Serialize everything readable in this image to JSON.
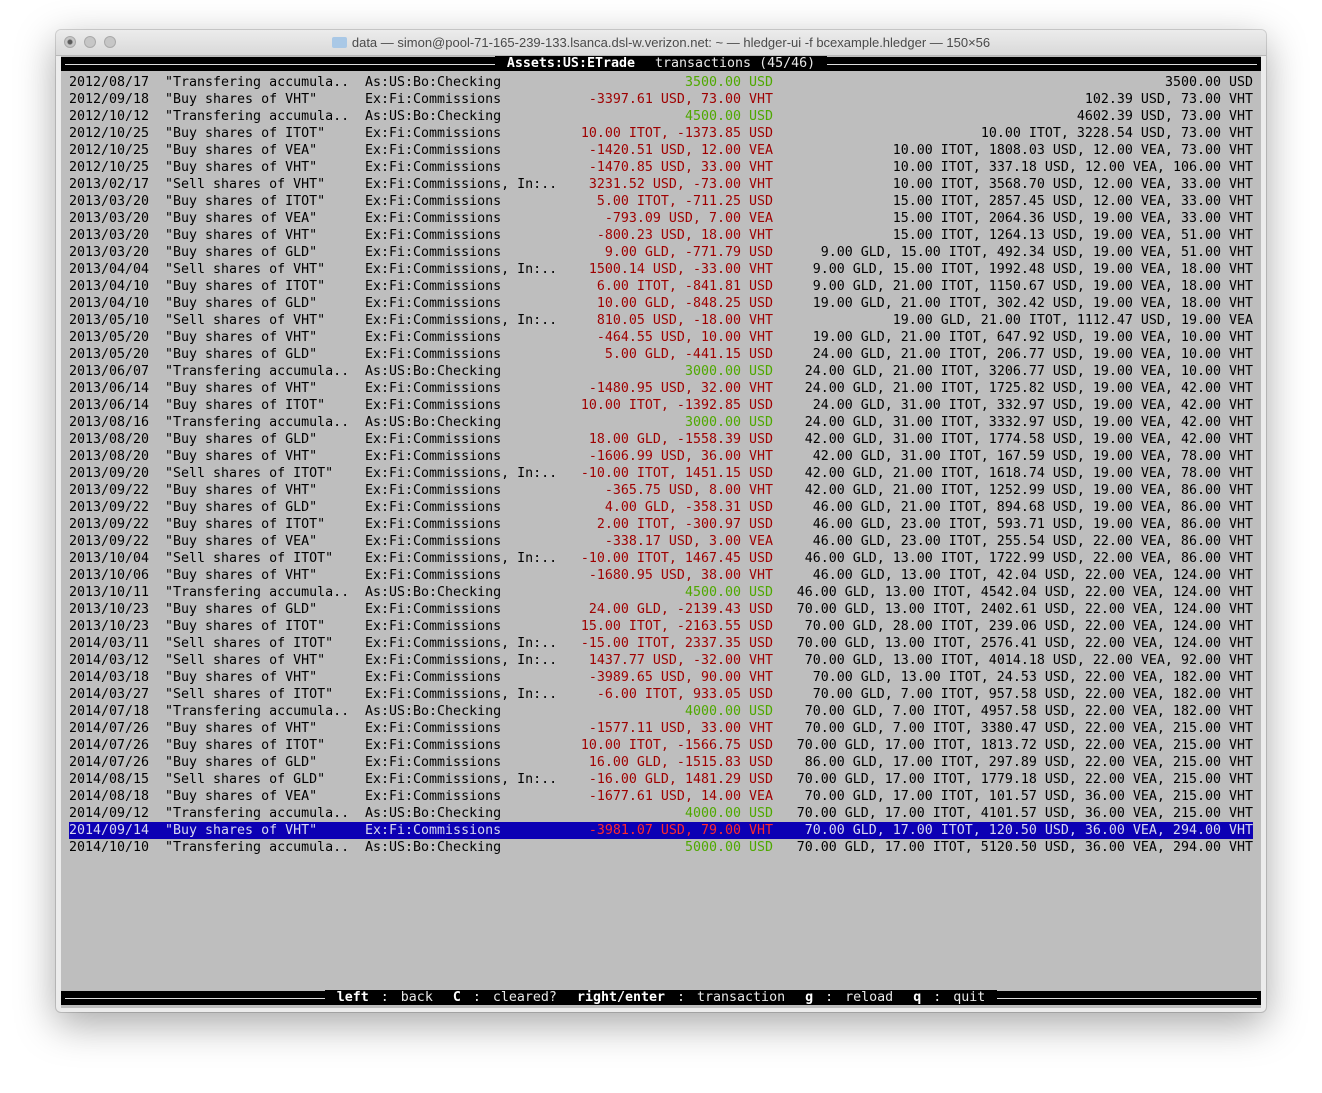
{
  "window": {
    "title": "data — simon@pool-71-165-239-133.lsanca.dsl-w.verizon.net: ~ — hledger-ui -f bcexample.hledger — 150×56"
  },
  "header": {
    "account": "Assets:US:ETrade",
    "label": "transactions (45/46)"
  },
  "footer": {
    "keys": [
      {
        "key": "left",
        "action": "back"
      },
      {
        "key": "C",
        "action": "cleared?"
      },
      {
        "key": "right/enter",
        "action": "transaction"
      },
      {
        "key": "g",
        "action": "reload"
      },
      {
        "key": "q",
        "action": "quit"
      }
    ]
  },
  "colors": {
    "background": "#bebebe",
    "selection": "#0c00b4",
    "negative": "#9e0000",
    "positive": "#4fa800"
  },
  "selected_index": 44,
  "rows": [
    {
      "date": "2012/08/17",
      "desc": "\"Transfering accumula..",
      "account": "As:US:Bo:Checking",
      "amount": "3500.00 USD",
      "balance": "3500.00 USD",
      "color": "green"
    },
    {
      "date": "2012/09/18",
      "desc": "\"Buy shares of VHT\"",
      "account": "Ex:Fi:Commissions",
      "amount": "-3397.61 USD, 73.00 VHT",
      "balance": "102.39 USD, 73.00 VHT",
      "color": "red"
    },
    {
      "date": "2012/10/12",
      "desc": "\"Transfering accumula..",
      "account": "As:US:Bo:Checking",
      "amount": "4500.00 USD",
      "balance": "4602.39 USD, 73.00 VHT",
      "color": "green"
    },
    {
      "date": "2012/10/25",
      "desc": "\"Buy shares of ITOT\"",
      "account": "Ex:Fi:Commissions",
      "amount": "10.00 ITOT, -1373.85 USD",
      "balance": "10.00 ITOT, 3228.54 USD, 73.00 VHT",
      "color": "red"
    },
    {
      "date": "2012/10/25",
      "desc": "\"Buy shares of VEA\"",
      "account": "Ex:Fi:Commissions",
      "amount": "-1420.51 USD, 12.00 VEA",
      "balance": "10.00 ITOT, 1808.03 USD, 12.00 VEA, 73.00 VHT",
      "color": "red"
    },
    {
      "date": "2012/10/25",
      "desc": "\"Buy shares of VHT\"",
      "account": "Ex:Fi:Commissions",
      "amount": "-1470.85 USD, 33.00 VHT",
      "balance": "10.00 ITOT, 337.18 USD, 12.00 VEA, 106.00 VHT",
      "color": "red"
    },
    {
      "date": "2013/02/17",
      "desc": "\"Sell shares of VHT\"",
      "account": "Ex:Fi:Commissions, In:..",
      "amount": "3231.52 USD, -73.00 VHT",
      "balance": "10.00 ITOT, 3568.70 USD, 12.00 VEA, 33.00 VHT",
      "color": "red"
    },
    {
      "date": "2013/03/20",
      "desc": "\"Buy shares of ITOT\"",
      "account": "Ex:Fi:Commissions",
      "amount": "5.00 ITOT, -711.25 USD",
      "balance": "15.00 ITOT, 2857.45 USD, 12.00 VEA, 33.00 VHT",
      "color": "red"
    },
    {
      "date": "2013/03/20",
      "desc": "\"Buy shares of VEA\"",
      "account": "Ex:Fi:Commissions",
      "amount": "-793.09 USD, 7.00 VEA",
      "balance": "15.00 ITOT, 2064.36 USD, 19.00 VEA, 33.00 VHT",
      "color": "red"
    },
    {
      "date": "2013/03/20",
      "desc": "\"Buy shares of VHT\"",
      "account": "Ex:Fi:Commissions",
      "amount": "-800.23 USD, 18.00 VHT",
      "balance": "15.00 ITOT, 1264.13 USD, 19.00 VEA, 51.00 VHT",
      "color": "red"
    },
    {
      "date": "2013/03/20",
      "desc": "\"Buy shares of GLD\"",
      "account": "Ex:Fi:Commissions",
      "amount": "9.00 GLD, -771.79 USD",
      "balance": "9.00 GLD, 15.00 ITOT, 492.34 USD, 19.00 VEA, 51.00 VHT",
      "color": "red"
    },
    {
      "date": "2013/04/04",
      "desc": "\"Sell shares of VHT\"",
      "account": "Ex:Fi:Commissions, In:..",
      "amount": "1500.14 USD, -33.00 VHT",
      "balance": "9.00 GLD, 15.00 ITOT, 1992.48 USD, 19.00 VEA, 18.00 VHT",
      "color": "red"
    },
    {
      "date": "2013/04/10",
      "desc": "\"Buy shares of ITOT\"",
      "account": "Ex:Fi:Commissions",
      "amount": "6.00 ITOT, -841.81 USD",
      "balance": "9.00 GLD, 21.00 ITOT, 1150.67 USD, 19.00 VEA, 18.00 VHT",
      "color": "red"
    },
    {
      "date": "2013/04/10",
      "desc": "\"Buy shares of GLD\"",
      "account": "Ex:Fi:Commissions",
      "amount": "10.00 GLD, -848.25 USD",
      "balance": "19.00 GLD, 21.00 ITOT, 302.42 USD, 19.00 VEA, 18.00 VHT",
      "color": "red"
    },
    {
      "date": "2013/05/10",
      "desc": "\"Sell shares of VHT\"",
      "account": "Ex:Fi:Commissions, In:..",
      "amount": "810.05 USD, -18.00 VHT",
      "balance": "19.00 GLD, 21.00 ITOT, 1112.47 USD, 19.00 VEA",
      "color": "red"
    },
    {
      "date": "2013/05/20",
      "desc": "\"Buy shares of VHT\"",
      "account": "Ex:Fi:Commissions",
      "amount": "-464.55 USD, 10.00 VHT",
      "balance": "19.00 GLD, 21.00 ITOT, 647.92 USD, 19.00 VEA, 10.00 VHT",
      "color": "red"
    },
    {
      "date": "2013/05/20",
      "desc": "\"Buy shares of GLD\"",
      "account": "Ex:Fi:Commissions",
      "amount": "5.00 GLD, -441.15 USD",
      "balance": "24.00 GLD, 21.00 ITOT, 206.77 USD, 19.00 VEA, 10.00 VHT",
      "color": "red"
    },
    {
      "date": "2013/06/07",
      "desc": "\"Transfering accumula..",
      "account": "As:US:Bo:Checking",
      "amount": "3000.00 USD",
      "balance": "24.00 GLD, 21.00 ITOT, 3206.77 USD, 19.00 VEA, 10.00 VHT",
      "color": "green"
    },
    {
      "date": "2013/06/14",
      "desc": "\"Buy shares of VHT\"",
      "account": "Ex:Fi:Commissions",
      "amount": "-1480.95 USD, 32.00 VHT",
      "balance": "24.00 GLD, 21.00 ITOT, 1725.82 USD, 19.00 VEA, 42.00 VHT",
      "color": "red"
    },
    {
      "date": "2013/06/14",
      "desc": "\"Buy shares of ITOT\"",
      "account": "Ex:Fi:Commissions",
      "amount": "10.00 ITOT, -1392.85 USD",
      "balance": "24.00 GLD, 31.00 ITOT, 332.97 USD, 19.00 VEA, 42.00 VHT",
      "color": "red"
    },
    {
      "date": "2013/08/16",
      "desc": "\"Transfering accumula..",
      "account": "As:US:Bo:Checking",
      "amount": "3000.00 USD",
      "balance": "24.00 GLD, 31.00 ITOT, 3332.97 USD, 19.00 VEA, 42.00 VHT",
      "color": "green"
    },
    {
      "date": "2013/08/20",
      "desc": "\"Buy shares of GLD\"",
      "account": "Ex:Fi:Commissions",
      "amount": "18.00 GLD, -1558.39 USD",
      "balance": "42.00 GLD, 31.00 ITOT, 1774.58 USD, 19.00 VEA, 42.00 VHT",
      "color": "red"
    },
    {
      "date": "2013/08/20",
      "desc": "\"Buy shares of VHT\"",
      "account": "Ex:Fi:Commissions",
      "amount": "-1606.99 USD, 36.00 VHT",
      "balance": "42.00 GLD, 31.00 ITOT, 167.59 USD, 19.00 VEA, 78.00 VHT",
      "color": "red"
    },
    {
      "date": "2013/09/20",
      "desc": "\"Sell shares of ITOT\"",
      "account": "Ex:Fi:Commissions, In:..",
      "amount": "-10.00 ITOT, 1451.15 USD",
      "balance": "42.00 GLD, 21.00 ITOT, 1618.74 USD, 19.00 VEA, 78.00 VHT",
      "color": "red"
    },
    {
      "date": "2013/09/22",
      "desc": "\"Buy shares of VHT\"",
      "account": "Ex:Fi:Commissions",
      "amount": "-365.75 USD, 8.00 VHT",
      "balance": "42.00 GLD, 21.00 ITOT, 1252.99 USD, 19.00 VEA, 86.00 VHT",
      "color": "red"
    },
    {
      "date": "2013/09/22",
      "desc": "\"Buy shares of GLD\"",
      "account": "Ex:Fi:Commissions",
      "amount": "4.00 GLD, -358.31 USD",
      "balance": "46.00 GLD, 21.00 ITOT, 894.68 USD, 19.00 VEA, 86.00 VHT",
      "color": "red"
    },
    {
      "date": "2013/09/22",
      "desc": "\"Buy shares of ITOT\"",
      "account": "Ex:Fi:Commissions",
      "amount": "2.00 ITOT, -300.97 USD",
      "balance": "46.00 GLD, 23.00 ITOT, 593.71 USD, 19.00 VEA, 86.00 VHT",
      "color": "red"
    },
    {
      "date": "2013/09/22",
      "desc": "\"Buy shares of VEA\"",
      "account": "Ex:Fi:Commissions",
      "amount": "-338.17 USD, 3.00 VEA",
      "balance": "46.00 GLD, 23.00 ITOT, 255.54 USD, 22.00 VEA, 86.00 VHT",
      "color": "red"
    },
    {
      "date": "2013/10/04",
      "desc": "\"Sell shares of ITOT\"",
      "account": "Ex:Fi:Commissions, In:..",
      "amount": "-10.00 ITOT, 1467.45 USD",
      "balance": "46.00 GLD, 13.00 ITOT, 1722.99 USD, 22.00 VEA, 86.00 VHT",
      "color": "red"
    },
    {
      "date": "2013/10/06",
      "desc": "\"Buy shares of VHT\"",
      "account": "Ex:Fi:Commissions",
      "amount": "-1680.95 USD, 38.00 VHT",
      "balance": "46.00 GLD, 13.00 ITOT, 42.04 USD, 22.00 VEA, 124.00 VHT",
      "color": "red"
    },
    {
      "date": "2013/10/11",
      "desc": "\"Transfering accumula..",
      "account": "As:US:Bo:Checking",
      "amount": "4500.00 USD",
      "balance": "46.00 GLD, 13.00 ITOT, 4542.04 USD, 22.00 VEA, 124.00 VHT",
      "color": "green"
    },
    {
      "date": "2013/10/23",
      "desc": "\"Buy shares of GLD\"",
      "account": "Ex:Fi:Commissions",
      "amount": "24.00 GLD, -2139.43 USD",
      "balance": "70.00 GLD, 13.00 ITOT, 2402.61 USD, 22.00 VEA, 124.00 VHT",
      "color": "red"
    },
    {
      "date": "2013/10/23",
      "desc": "\"Buy shares of ITOT\"",
      "account": "Ex:Fi:Commissions",
      "amount": "15.00 ITOT, -2163.55 USD",
      "balance": "70.00 GLD, 28.00 ITOT, 239.06 USD, 22.00 VEA, 124.00 VHT",
      "color": "red"
    },
    {
      "date": "2014/03/11",
      "desc": "\"Sell shares of ITOT\"",
      "account": "Ex:Fi:Commissions, In:..",
      "amount": "-15.00 ITOT, 2337.35 USD",
      "balance": "70.00 GLD, 13.00 ITOT, 2576.41 USD, 22.00 VEA, 124.00 VHT",
      "color": "red"
    },
    {
      "date": "2014/03/12",
      "desc": "\"Sell shares of VHT\"",
      "account": "Ex:Fi:Commissions, In:..",
      "amount": "1437.77 USD, -32.00 VHT",
      "balance": "70.00 GLD, 13.00 ITOT, 4014.18 USD, 22.00 VEA, 92.00 VHT",
      "color": "red"
    },
    {
      "date": "2014/03/18",
      "desc": "\"Buy shares of VHT\"",
      "account": "Ex:Fi:Commissions",
      "amount": "-3989.65 USD, 90.00 VHT",
      "balance": "70.00 GLD, 13.00 ITOT, 24.53 USD, 22.00 VEA, 182.00 VHT",
      "color": "red"
    },
    {
      "date": "2014/03/27",
      "desc": "\"Sell shares of ITOT\"",
      "account": "Ex:Fi:Commissions, In:..",
      "amount": "-6.00 ITOT, 933.05 USD",
      "balance": "70.00 GLD, 7.00 ITOT, 957.58 USD, 22.00 VEA, 182.00 VHT",
      "color": "red"
    },
    {
      "date": "2014/07/18",
      "desc": "\"Transfering accumula..",
      "account": "As:US:Bo:Checking",
      "amount": "4000.00 USD",
      "balance": "70.00 GLD, 7.00 ITOT, 4957.58 USD, 22.00 VEA, 182.00 VHT",
      "color": "green"
    },
    {
      "date": "2014/07/26",
      "desc": "\"Buy shares of VHT\"",
      "account": "Ex:Fi:Commissions",
      "amount": "-1577.11 USD, 33.00 VHT",
      "balance": "70.00 GLD, 7.00 ITOT, 3380.47 USD, 22.00 VEA, 215.00 VHT",
      "color": "red"
    },
    {
      "date": "2014/07/26",
      "desc": "\"Buy shares of ITOT\"",
      "account": "Ex:Fi:Commissions",
      "amount": "10.00 ITOT, -1566.75 USD",
      "balance": "70.00 GLD, 17.00 ITOT, 1813.72 USD, 22.00 VEA, 215.00 VHT",
      "color": "red"
    },
    {
      "date": "2014/07/26",
      "desc": "\"Buy shares of GLD\"",
      "account": "Ex:Fi:Commissions",
      "amount": "16.00 GLD, -1515.83 USD",
      "balance": "86.00 GLD, 17.00 ITOT, 297.89 USD, 22.00 VEA, 215.00 VHT",
      "color": "red"
    },
    {
      "date": "2014/08/15",
      "desc": "\"Sell shares of GLD\"",
      "account": "Ex:Fi:Commissions, In:..",
      "amount": "-16.00 GLD, 1481.29 USD",
      "balance": "70.00 GLD, 17.00 ITOT, 1779.18 USD, 22.00 VEA, 215.00 VHT",
      "color": "red"
    },
    {
      "date": "2014/08/18",
      "desc": "\"Buy shares of VEA\"",
      "account": "Ex:Fi:Commissions",
      "amount": "-1677.61 USD, 14.00 VEA",
      "balance": "70.00 GLD, 17.00 ITOT, 101.57 USD, 36.00 VEA, 215.00 VHT",
      "color": "red"
    },
    {
      "date": "2014/09/12",
      "desc": "\"Transfering accumula..",
      "account": "As:US:Bo:Checking",
      "amount": "4000.00 USD",
      "balance": "70.00 GLD, 17.00 ITOT, 4101.57 USD, 36.00 VEA, 215.00 VHT",
      "color": "green"
    },
    {
      "date": "2014/09/14",
      "desc": "\"Buy shares of VHT\"",
      "account": "Ex:Fi:Commissions",
      "amount": "-3981.07 USD, 79.00 VHT",
      "balance": "70.00 GLD, 17.00 ITOT, 120.50 USD, 36.00 VEA, 294.00 VHT",
      "color": "red"
    },
    {
      "date": "2014/10/10",
      "desc": "\"Transfering accumula..",
      "account": "As:US:Bo:Checking",
      "amount": "5000.00 USD",
      "balance": "70.00 GLD, 17.00 ITOT, 5120.50 USD, 36.00 VEA, 294.00 VHT",
      "color": "green"
    }
  ]
}
